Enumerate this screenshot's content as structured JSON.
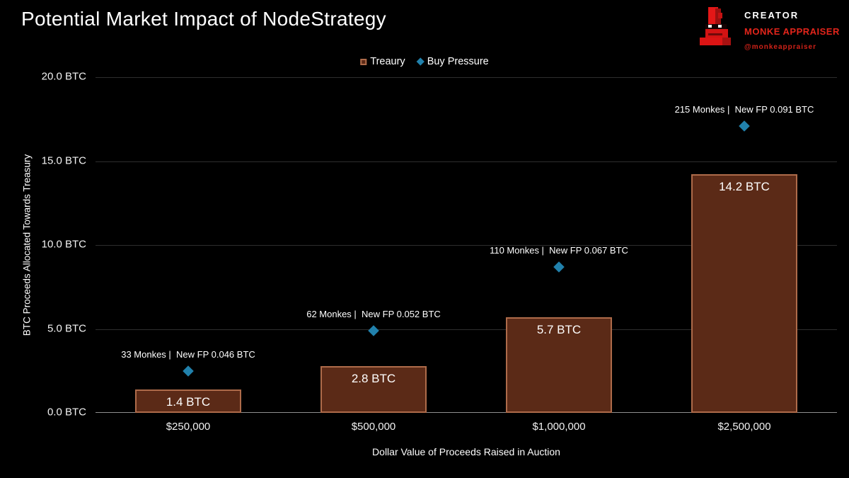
{
  "title": "Potential Market Impact of NodeStrategy",
  "creator": {
    "label": "CREATOR",
    "name": "MONKE APPRAISER",
    "handle": "@monkeappraiser"
  },
  "colors": {
    "background": "#000000",
    "text": "#ffffff",
    "accent_red": "#e3251b",
    "bar_fill": "#5b2a17",
    "bar_border": "#ae6b4a",
    "diamond": "#2181ac",
    "gridline": "#2e2e2e",
    "axis_line": "#8f8f8f",
    "logo_red_bright": "#e41717",
    "logo_red_dark": "#9c1010"
  },
  "chart_data": {
    "type": "bar",
    "title": "Potential Market Impact of NodeStrategy",
    "categories": [
      "$250,000",
      "$500,000",
      "$1,000,000",
      "$2,500,000"
    ],
    "series": [
      {
        "name": "Treaury",
        "type": "bar",
        "values": [
          1.4,
          2.8,
          5.7,
          14.2
        ],
        "value_labels": [
          "1.4 BTC",
          "2.8 BTC",
          "5.7 BTC",
          "14.2 BTC"
        ]
      },
      {
        "name": "Buy Pressure",
        "type": "scatter",
        "values": [
          2.5,
          4.9,
          8.7,
          17.1
        ],
        "point_labels": [
          "33 Monkes |  New FP 0.046 BTC",
          "62 Monkes |  New FP 0.052 BTC",
          "110 Monkes |  New FP 0.067 BTC",
          "215 Monkes |  New FP 0.091 BTC"
        ],
        "monkes": [
          33,
          62,
          110,
          215
        ],
        "new_fp_btc": [
          0.046,
          0.052,
          0.067,
          0.091
        ]
      }
    ],
    "xlabel": "Dollar Value of Proceeds Raised in Auction",
    "ylabel": "BTC Proceeds Allocated Towards Treasury",
    "ylim": [
      0,
      20
    ],
    "ytick_values": [
      0,
      5,
      10,
      15,
      20
    ],
    "ytick_labels": [
      "0.0 BTC",
      "5.0 BTC",
      "10.0 BTC",
      "15.0 BTC",
      "20.0 BTC"
    ],
    "grid": true,
    "legend_position": "top-center"
  }
}
